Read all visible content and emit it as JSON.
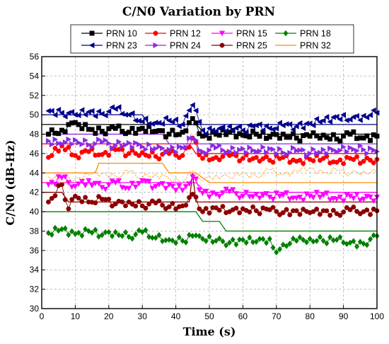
{
  "chart_data": {
    "type": "line",
    "title": "C/N0 Variation by PRN",
    "xlabel": "Time (s)",
    "ylabel": "C/N0 (dB-Hz)",
    "xlim": [
      0,
      100
    ],
    "ylim": [
      30,
      56
    ],
    "x_ticks": [
      0,
      10,
      20,
      30,
      40,
      50,
      60,
      70,
      80,
      90,
      100
    ],
    "y_ticks": [
      30,
      32,
      34,
      36,
      38,
      40,
      42,
      44,
      46,
      48,
      50,
      52,
      54,
      56
    ],
    "grid": true,
    "legend_position": "top",
    "series": [
      {
        "name": "PRN 10",
        "color": "#000000",
        "marker": "square",
        "smoothed": [
          [
            0,
            49
          ],
          [
            46,
            49
          ],
          [
            49,
            48
          ],
          [
            100,
            48
          ]
        ],
        "raw": [
          [
            2,
            48
          ],
          [
            6,
            48.4
          ],
          [
            10,
            49.2
          ],
          [
            14,
            48.5
          ],
          [
            18,
            48.3
          ],
          [
            22,
            48.6
          ],
          [
            26,
            48.2
          ],
          [
            30,
            48.6
          ],
          [
            34,
            48.3
          ],
          [
            38,
            48.0
          ],
          [
            42,
            48.2
          ],
          [
            45,
            49.6
          ],
          [
            48,
            47.8
          ],
          [
            52,
            48.0
          ],
          [
            56,
            48.2
          ],
          [
            60,
            47.9
          ],
          [
            64,
            48.0
          ],
          [
            68,
            47.7
          ],
          [
            72,
            48.0
          ],
          [
            76,
            47.6
          ],
          [
            80,
            47.8
          ],
          [
            84,
            47.9
          ],
          [
            88,
            47.5
          ],
          [
            92,
            48.0
          ],
          [
            96,
            47.6
          ],
          [
            100,
            47.8
          ]
        ]
      },
      {
        "name": "PRN 12",
        "color": "#ff0000",
        "marker": "circle",
        "smoothed": [
          [
            0,
            47
          ],
          [
            44,
            47
          ],
          [
            46,
            46
          ],
          [
            100,
            46
          ]
        ],
        "raw": [
          [
            2,
            45.6
          ],
          [
            6,
            46.8
          ],
          [
            10,
            45.8
          ],
          [
            14,
            46.2
          ],
          [
            18,
            45.9
          ],
          [
            22,
            46.4
          ],
          [
            26,
            46.0
          ],
          [
            30,
            46.1
          ],
          [
            34,
            45.7
          ],
          [
            38,
            46.0
          ],
          [
            42,
            45.8
          ],
          [
            45,
            47.6
          ],
          [
            48,
            45.5
          ],
          [
            52,
            45.6
          ],
          [
            56,
            45.8
          ],
          [
            60,
            45.5
          ],
          [
            64,
            45.6
          ],
          [
            68,
            45.3
          ],
          [
            72,
            45.6
          ],
          [
            76,
            45.2
          ],
          [
            80,
            45.4
          ],
          [
            84,
            45.5
          ],
          [
            88,
            45.1
          ],
          [
            92,
            45.5
          ],
          [
            96,
            45.2
          ],
          [
            100,
            45.4
          ]
        ]
      },
      {
        "name": "PRN 15",
        "color": "#ff00ff",
        "marker": "triangle-down",
        "smoothed": [
          [
            0,
            43
          ],
          [
            46,
            43
          ],
          [
            49,
            42
          ],
          [
            100,
            42
          ]
        ],
        "raw": [
          [
            2,
            42.8
          ],
          [
            6,
            43.5
          ],
          [
            10,
            42.6
          ],
          [
            14,
            43.2
          ],
          [
            18,
            42.5
          ],
          [
            22,
            43.0
          ],
          [
            26,
            42.4
          ],
          [
            30,
            43.2
          ],
          [
            34,
            42.6
          ],
          [
            38,
            42.8
          ],
          [
            42,
            42.2
          ],
          [
            45,
            43.6
          ],
          [
            48,
            41.9
          ],
          [
            52,
            41.8
          ],
          [
            56,
            42.1
          ],
          [
            60,
            41.6
          ],
          [
            64,
            41.8
          ],
          [
            68,
            41.5
          ],
          [
            72,
            41.7
          ],
          [
            76,
            41.4
          ],
          [
            80,
            41.6
          ],
          [
            84,
            41.7
          ],
          [
            88,
            41.3
          ],
          [
            92,
            41.6
          ],
          [
            96,
            41.3
          ],
          [
            100,
            41.5
          ]
        ]
      },
      {
        "name": "PRN 18",
        "color": "#008000",
        "marker": "diamond",
        "smoothed": [
          [
            0,
            40
          ],
          [
            46,
            40
          ],
          [
            48,
            39
          ],
          [
            53,
            39
          ],
          [
            55,
            38
          ],
          [
            100,
            38
          ]
        ],
        "raw": [
          [
            2,
            37.8
          ],
          [
            6,
            38.2
          ],
          [
            10,
            37.7
          ],
          [
            14,
            38.0
          ],
          [
            18,
            37.6
          ],
          [
            22,
            37.9
          ],
          [
            26,
            37.4
          ],
          [
            30,
            37.9
          ],
          [
            34,
            37.3
          ],
          [
            38,
            37.1
          ],
          [
            42,
            37.0
          ],
          [
            45,
            37.5
          ],
          [
            48,
            37.2
          ],
          [
            52,
            37.0
          ],
          [
            56,
            36.8
          ],
          [
            60,
            37.1
          ],
          [
            64,
            36.9
          ],
          [
            68,
            37.2
          ],
          [
            70,
            35.8
          ],
          [
            72,
            36.6
          ],
          [
            76,
            37.0
          ],
          [
            80,
            37.2
          ],
          [
            84,
            37.0
          ],
          [
            88,
            37.1
          ],
          [
            92,
            36.8
          ],
          [
            96,
            36.7
          ],
          [
            100,
            37.5
          ]
        ]
      },
      {
        "name": "PRN 23",
        "color": "#00008b",
        "marker": "triangle-left",
        "smoothed": [
          [
            0,
            50
          ],
          [
            30,
            50
          ],
          [
            32,
            49
          ],
          [
            100,
            49
          ]
        ],
        "raw": [
          [
            2,
            50.4
          ],
          [
            6,
            50.2
          ],
          [
            10,
            50.0
          ],
          [
            14,
            50.3
          ],
          [
            18,
            50.1
          ],
          [
            22,
            50.6
          ],
          [
            26,
            50.0
          ],
          [
            30,
            49.3
          ],
          [
            34,
            49.2
          ],
          [
            38,
            49.4
          ],
          [
            42,
            49.0
          ],
          [
            45,
            51.0
          ],
          [
            48,
            48.4
          ],
          [
            52,
            48.3
          ],
          [
            56,
            48.8
          ],
          [
            60,
            48.4
          ],
          [
            64,
            48.9
          ],
          [
            68,
            48.6
          ],
          [
            72,
            48.9
          ],
          [
            76,
            48.8
          ],
          [
            80,
            49.1
          ],
          [
            84,
            49.4
          ],
          [
            88,
            49.8
          ],
          [
            92,
            49.5
          ],
          [
            96,
            49.9
          ],
          [
            100,
            50.2
          ]
        ]
      },
      {
        "name": "PRN 24",
        "color": "#8a2be2",
        "marker": "triangle-right",
        "smoothed": [
          [
            0,
            48
          ],
          [
            36,
            48
          ],
          [
            38,
            47
          ],
          [
            100,
            47
          ]
        ],
        "raw": [
          [
            2,
            47.3
          ],
          [
            6,
            47.0
          ],
          [
            10,
            47.4
          ],
          [
            14,
            46.9
          ],
          [
            18,
            47.2
          ],
          [
            22,
            46.8
          ],
          [
            26,
            47.1
          ],
          [
            30,
            46.7
          ],
          [
            34,
            46.5
          ],
          [
            38,
            46.4
          ],
          [
            42,
            46.6
          ],
          [
            45,
            47.6
          ],
          [
            48,
            46.2
          ],
          [
            52,
            46.6
          ],
          [
            56,
            46.2
          ],
          [
            60,
            46.5
          ],
          [
            64,
            46.2
          ],
          [
            68,
            46.5
          ],
          [
            72,
            46.1
          ],
          [
            76,
            46.3
          ],
          [
            80,
            46.0
          ],
          [
            84,
            46.4
          ],
          [
            88,
            46.2
          ],
          [
            92,
            46.6
          ],
          [
            96,
            46.4
          ],
          [
            100,
            46.2
          ]
        ]
      },
      {
        "name": "PRN 25",
        "color": "#8b0000",
        "marker": "circle",
        "smoothed": [
          [
            0,
            42
          ],
          [
            6,
            42
          ],
          [
            8,
            41
          ],
          [
            44,
            41
          ],
          [
            45,
            44
          ],
          [
            46,
            41
          ],
          [
            100,
            41
          ]
        ],
        "raw": [
          [
            2,
            41.0
          ],
          [
            6,
            42.8
          ],
          [
            8,
            40.3
          ],
          [
            10,
            41.6
          ],
          [
            14,
            41.0
          ],
          [
            18,
            41.3
          ],
          [
            22,
            40.8
          ],
          [
            26,
            41.0
          ],
          [
            30,
            40.6
          ],
          [
            34,
            40.9
          ],
          [
            38,
            40.5
          ],
          [
            42,
            40.6
          ],
          [
            45,
            41.8
          ],
          [
            48,
            40.0
          ],
          [
            52,
            40.4
          ],
          [
            56,
            40.0
          ],
          [
            60,
            40.3
          ],
          [
            64,
            40.1
          ],
          [
            68,
            40.2
          ],
          [
            72,
            39.9
          ],
          [
            76,
            40.1
          ],
          [
            80,
            39.9
          ],
          [
            84,
            40.1
          ],
          [
            88,
            39.8
          ],
          [
            92,
            40.2
          ],
          [
            96,
            40.0
          ],
          [
            100,
            40.1
          ]
        ]
      },
      {
        "name": "PRN 32",
        "color": "#ff8c00",
        "marker": "none",
        "smoothed": [
          [
            0,
            44
          ],
          [
            16,
            44
          ],
          [
            17,
            45
          ],
          [
            36,
            45
          ],
          [
            38,
            44
          ],
          [
            46,
            44
          ],
          [
            50,
            43
          ],
          [
            100,
            43
          ]
        ],
        "raw": [
          [
            2,
            43.6
          ],
          [
            6,
            43.0
          ],
          [
            10,
            43.4
          ],
          [
            14,
            43.8
          ],
          [
            18,
            44.0
          ],
          [
            22,
            43.6
          ],
          [
            26,
            44.1
          ],
          [
            30,
            43.5
          ],
          [
            34,
            43.9
          ],
          [
            38,
            43.4
          ],
          [
            42,
            43.0
          ],
          [
            45,
            44.2
          ],
          [
            48,
            43.2
          ],
          [
            52,
            43.8
          ],
          [
            56,
            43.5
          ],
          [
            60,
            44.0
          ],
          [
            64,
            43.6
          ],
          [
            68,
            44.3
          ],
          [
            72,
            43.8
          ],
          [
            76,
            44.2
          ],
          [
            80,
            44.5
          ],
          [
            84,
            44.0
          ],
          [
            88,
            44.3
          ],
          [
            92,
            43.9
          ],
          [
            96,
            44.2
          ],
          [
            100,
            44.0
          ]
        ]
      }
    ]
  }
}
